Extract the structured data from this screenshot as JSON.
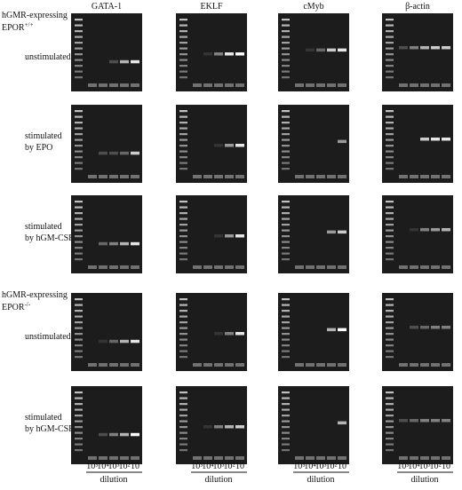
{
  "columns": [
    "GATA-1",
    "EKLF",
    "cMyb",
    "β-actin"
  ],
  "groups": [
    {
      "header": {
        "line1": "hGMR-expressing",
        "line2": "EPOR",
        "sup": "+/+"
      },
      "rows": [
        [
          "unstimulated"
        ],
        [
          "stimulated",
          "by EPO"
        ],
        [
          "stimulated",
          "by hGM-CSF"
        ]
      ]
    },
    {
      "header": {
        "line1": "hGMR-expressing",
        "line2": "EPOR",
        "sup": "-/-"
      },
      "rows": [
        [
          "unstimulated"
        ],
        [
          "stimulated",
          "by hGM-CSF"
        ]
      ]
    }
  ],
  "dilution_ticks": [
    "10⁵",
    "10⁴",
    "10³",
    "10²",
    "10"
  ],
  "dilution_label": "dilution"
}
